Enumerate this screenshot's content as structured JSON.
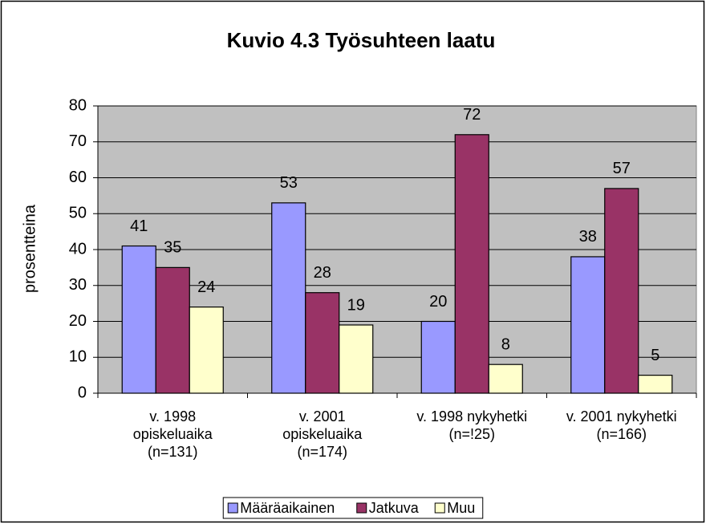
{
  "chart_data": {
    "type": "bar",
    "title": "Kuvio 4.3 Työsuhteen laatu",
    "y_label": "prosentteina",
    "categories": [
      "v. 1998\nopiskeluaika\n(n=131)",
      "v. 2001\nopiskeluaika\n(n=174)",
      "v. 1998 nykyhetki\n(n=!25)",
      "v. 2001 nykyhetki\n(n=166)"
    ],
    "series": [
      {
        "name": "Määräaikainen",
        "color": "#9999ff",
        "values": [
          41,
          53,
          20,
          38
        ]
      },
      {
        "name": "Jatkuva",
        "color": "#993366",
        "values": [
          35,
          28,
          72,
          57
        ]
      },
      {
        "name": "Muu",
        "color": "#ffffcc",
        "values": [
          24,
          19,
          8,
          5
        ]
      }
    ],
    "ylim": [
      0,
      80
    ],
    "yticks": [
      0,
      10,
      20,
      30,
      40,
      50,
      60,
      70,
      80
    ],
    "legend": "bottom",
    "plot_background": "#c0c0c0"
  }
}
